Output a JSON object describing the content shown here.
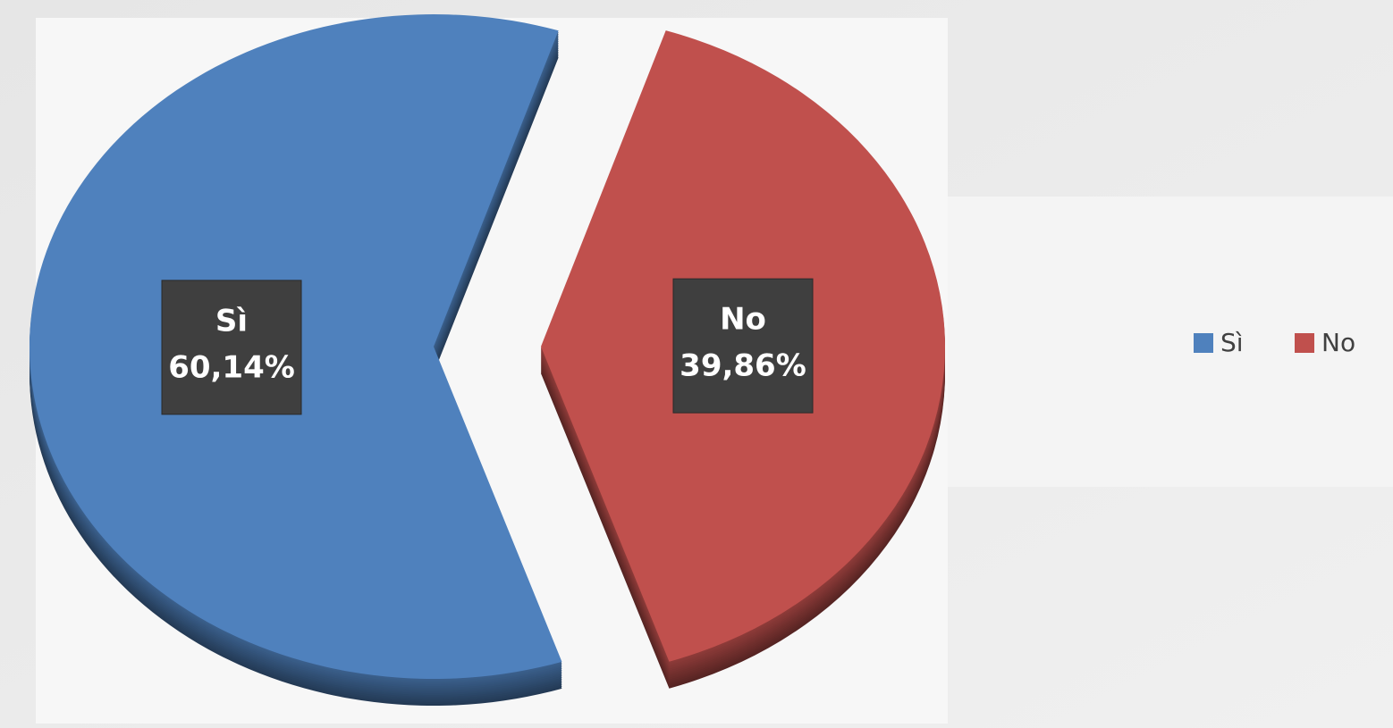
{
  "chart_data": {
    "type": "pie",
    "categories": [
      "Sì",
      "No"
    ],
    "values": [
      60.14,
      39.86
    ],
    "value_labels": [
      "60,14%",
      "39,86%"
    ],
    "colors": [
      "#4f81bd",
      "#c0504d"
    ],
    "legend": "right"
  }
}
